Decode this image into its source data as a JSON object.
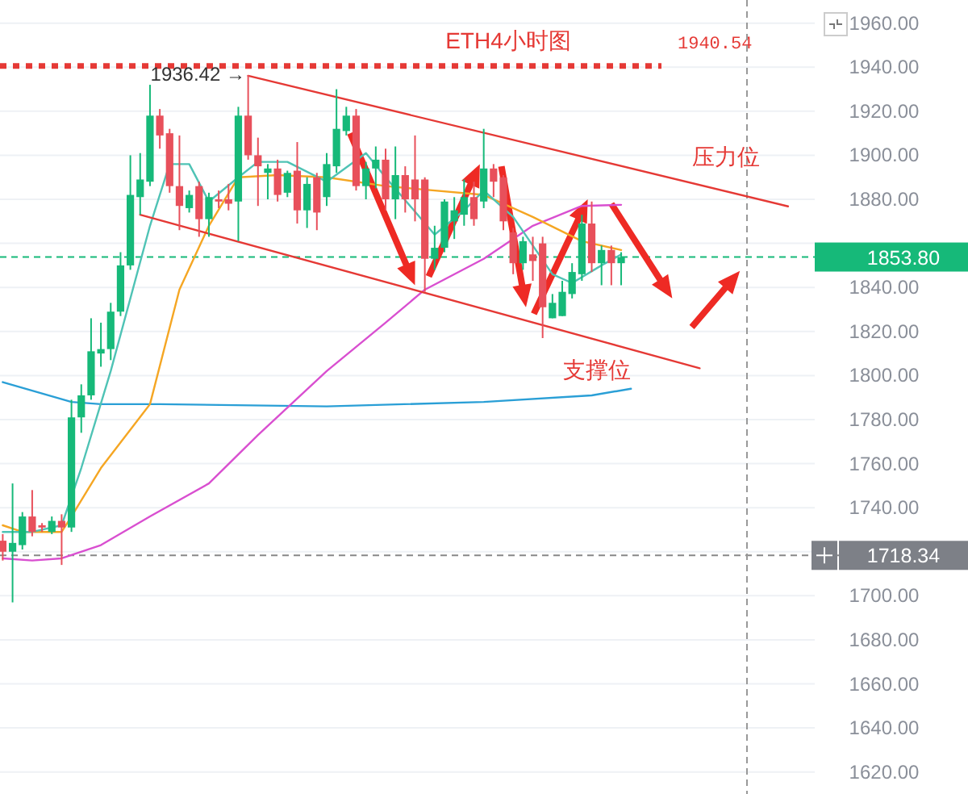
{
  "chart_data": {
    "type": "candlestick",
    "title": "ETH4小时图",
    "categories": [
      null,
      null,
      null,
      null,
      null,
      null,
      null,
      null,
      null,
      null,
      null,
      null,
      null,
      null,
      null,
      null,
      null,
      null,
      null,
      null,
      null,
      null,
      null,
      null,
      null,
      null,
      null,
      null,
      null,
      null,
      null,
      null,
      null,
      null,
      null,
      null,
      null,
      null,
      null,
      null,
      null,
      null,
      null,
      null,
      null,
      null,
      null,
      null,
      null,
      null,
      null,
      null,
      null,
      null,
      null,
      null,
      null,
      null,
      null,
      null,
      null,
      null,
      null,
      null,
      null,
      null,
      null,
      null,
      null,
      null,
      null,
      null,
      null,
      null,
      null,
      null,
      null,
      null,
      null,
      null,
      null,
      null,
      null
    ],
    "ohlc": [
      [
        1725,
        1728,
        1716,
        1720
      ],
      [
        1720,
        1751,
        1697,
        1724
      ],
      [
        1723,
        1738,
        1721,
        1736
      ],
      [
        1736,
        1748,
        1727,
        1729
      ],
      [
        1732,
        1733,
        1729,
        1731
      ],
      [
        1729,
        1736,
        1728,
        1734
      ],
      [
        1734,
        1737,
        1714,
        1731
      ],
      [
        1731,
        1789,
        1729,
        1781
      ],
      [
        1781,
        1796,
        1774,
        1791
      ],
      [
        1791,
        1826,
        1789,
        1811
      ],
      [
        1810,
        1824,
        1804,
        1812
      ],
      [
        1812,
        1833,
        1807,
        1829
      ],
      [
        1829,
        1856,
        1827,
        1850
      ],
      [
        1850,
        1900,
        1848,
        1882
      ],
      [
        1881,
        1901,
        1873,
        1889
      ],
      [
        1888,
        1932,
        1886,
        1918
      ],
      [
        1918,
        1921,
        1903,
        1909
      ],
      [
        1910,
        1912,
        1883,
        1886
      ],
      [
        1886,
        1909,
        1866,
        1877
      ],
      [
        1876,
        1884,
        1874,
        1882
      ],
      [
        1886,
        1888,
        1863,
        1871
      ],
      [
        1871,
        1883,
        1863,
        1881
      ],
      [
        1880,
        1884,
        1876,
        1879
      ],
      [
        1880,
        1887,
        1875,
        1878
      ],
      [
        1879,
        1922,
        1861,
        1918
      ],
      [
        1918,
        1936.42,
        1898,
        1900
      ],
      [
        1900,
        1908,
        1877,
        1895
      ],
      [
        1892,
        1896,
        1880,
        1894
      ],
      [
        1894,
        1898,
        1879,
        1882
      ],
      [
        1883,
        1893,
        1881,
        1892
      ],
      [
        1893,
        1906,
        1869,
        1875
      ],
      [
        1875,
        1890,
        1867,
        1887
      ],
      [
        1890,
        1892,
        1866,
        1874
      ],
      [
        1881,
        1901,
        1877,
        1896
      ],
      [
        1895,
        1930,
        1892,
        1912
      ],
      [
        1911,
        1922,
        1909,
        1918
      ],
      [
        1918,
        1921,
        1884,
        1886
      ],
      [
        1886,
        1897,
        1880,
        1894
      ],
      [
        1894,
        1904,
        1885,
        1898
      ],
      [
        1898,
        1903,
        1875,
        1880
      ],
      [
        1880,
        1904,
        1871,
        1891
      ],
      [
        1891,
        1895,
        1874,
        1880
      ],
      [
        1889,
        1909,
        1870,
        1880
      ],
      [
        1889,
        1890,
        1838,
        1853
      ],
      [
        1853,
        1868,
        1848,
        1858
      ],
      [
        1858,
        1880,
        1856,
        1879
      ],
      [
        1870,
        1881,
        1862,
        1875
      ],
      [
        1873,
        1889,
        1868,
        1881
      ],
      [
        1881,
        1888,
        1868,
        1871
      ],
      [
        1879,
        1912,
        1876,
        1894
      ],
      [
        1894,
        1896,
        1881,
        1888
      ],
      [
        1890,
        1891,
        1866,
        1870
      ],
      [
        1865,
        1867,
        1846,
        1851
      ],
      [
        1851,
        1863,
        1848,
        1861
      ],
      [
        1855,
        1863,
        1843,
        1852
      ],
      [
        1860,
        1863,
        1817,
        1831
      ],
      [
        1826,
        1837,
        1826,
        1833
      ],
      [
        1827,
        1843,
        1827,
        1838
      ],
      [
        1837,
        1851,
        1835,
        1847
      ],
      [
        1846,
        1873,
        1843,
        1869
      ],
      [
        1869,
        1879,
        1847,
        1851
      ],
      [
        1851,
        1859,
        1841,
        1857
      ],
      [
        1857,
        1859,
        1841,
        1851
      ],
      [
        1851,
        1856,
        1841,
        1853.8
      ],
      null,
      null,
      null,
      null,
      null,
      null,
      null,
      null,
      null,
      null,
      null,
      null,
      null,
      null,
      null,
      null,
      null,
      null,
      null
    ],
    "series": [
      {
        "type": "line",
        "color": "#2a9fd6",
        "values": [
          1797,
          null,
          null,
          null,
          null,
          null,
          null,
          1788,
          null,
          null,
          1787,
          null,
          null,
          null,
          null,
          null,
          1787,
          null,
          null,
          null,
          null,
          null,
          null,
          null,
          null,
          null,
          null,
          null,
          null,
          null,
          null,
          null,
          null,
          1786,
          null,
          null,
          null,
          null,
          null,
          null,
          null,
          null,
          null,
          null,
          null,
          null,
          null,
          null,
          null,
          1788,
          null,
          null,
          null,
          null,
          null,
          null,
          null,
          null,
          null,
          null,
          1791,
          null,
          null,
          null,
          1794,
          null,
          null,
          null,
          null,
          null,
          null,
          null,
          null,
          null,
          null,
          null,
          null,
          null,
          null,
          null,
          null,
          null,
          null
        ]
      },
      {
        "type": "line",
        "color": "#d94fd0",
        "values": [
          1717,
          null,
          null,
          1716,
          null,
          null,
          1717,
          null,
          null,
          null,
          1723,
          null,
          null,
          null,
          null,
          1736,
          null,
          null,
          null,
          null,
          null,
          1751,
          null,
          null,
          null,
          null,
          1773,
          null,
          null,
          null,
          null,
          null,
          null,
          1802,
          null,
          null,
          null,
          null,
          null,
          1824,
          null,
          null,
          null,
          1839,
          null,
          null,
          null,
          null,
          null,
          1853,
          null,
          null,
          null,
          null,
          1868,
          null,
          null,
          null,
          null,
          1877,
          null,
          null,
          null,
          1877.5,
          null,
          null,
          null,
          null,
          null,
          null,
          null,
          null,
          null,
          null,
          null,
          null,
          null,
          null,
          null,
          null,
          null,
          null,
          null
        ]
      },
      {
        "type": "line",
        "color": "#f5a623",
        "values": [
          1732,
          null,
          1729,
          null,
          null,
          null,
          1729,
          1736,
          null,
          null,
          1758,
          null,
          null,
          null,
          null,
          1787,
          null,
          null,
          1839,
          null,
          null,
          1868,
          null,
          null,
          1890,
          null,
          null,
          null,
          1891,
          null,
          null,
          null,
          null,
          1890,
          null,
          null,
          null,
          null,
          null,
          1886,
          null,
          null,
          null,
          null,
          null,
          null,
          null,
          null,
          null,
          1882,
          null,
          null,
          null,
          null,
          1872,
          null,
          null,
          null,
          null,
          1861,
          null,
          null,
          null,
          1857,
          null,
          null,
          null,
          null,
          null,
          null,
          null,
          null,
          null,
          null,
          null,
          null,
          null,
          null,
          null,
          null,
          null,
          null,
          null
        ]
      },
      {
        "type": "line",
        "color": "#4fc3b5",
        "values": [
          1729,
          null,
          null,
          1729,
          null,
          null,
          1732,
          null,
          1758,
          null,
          null,
          1802,
          null,
          null,
          null,
          1868,
          null,
          1896,
          null,
          1896,
          null,
          1879,
          null,
          null,
          1890,
          null,
          1897,
          null,
          null,
          1897,
          null,
          null,
          null,
          1888,
          null,
          null,
          null,
          1901,
          null,
          1890,
          null,
          null,
          null,
          null,
          1864,
          null,
          null,
          1875,
          null,
          1884,
          null,
          null,
          1872,
          null,
          null,
          null,
          1846,
          null,
          1842,
          null,
          null,
          1850,
          null,
          1855,
          null,
          null,
          null,
          null,
          null,
          null,
          null,
          null,
          null,
          null,
          null,
          null,
          null,
          null,
          null,
          null,
          null,
          null,
          null
        ]
      },
      {
        "type": "line",
        "color": "#e53935",
        "values": [
          null,
          null,
          null,
          null,
          null,
          null,
          null,
          null,
          null,
          null,
          null,
          null,
          null,
          null,
          null,
          null,
          null,
          null,
          null,
          null,
          null,
          null,
          null,
          null,
          null,
          1936.1,
          null,
          null,
          null,
          null,
          null,
          null,
          null,
          null,
          null,
          null,
          null,
          null,
          null,
          null,
          null,
          null,
          null,
          null,
          null,
          null,
          null,
          null,
          null,
          null,
          null,
          null,
          null,
          null,
          null,
          null,
          null,
          null,
          null,
          null,
          null,
          null,
          null,
          null,
          null,
          null,
          null,
          null,
          null,
          null,
          null,
          null,
          null,
          null,
          null,
          null,
          null,
          null,
          null,
          null,
          1876.8,
          null,
          null
        ]
      },
      {
        "type": "line",
        "color": "#e53935",
        "values": [
          null,
          null,
          null,
          null,
          null,
          null,
          null,
          null,
          null,
          null,
          null,
          null,
          null,
          null,
          1873,
          null,
          null,
          null,
          null,
          null,
          null,
          null,
          null,
          null,
          null,
          null,
          null,
          null,
          null,
          null,
          null,
          null,
          null,
          null,
          null,
          null,
          null,
          null,
          null,
          null,
          null,
          null,
          null,
          null,
          null,
          null,
          null,
          null,
          null,
          null,
          null,
          null,
          null,
          null,
          null,
          null,
          null,
          null,
          null,
          null,
          null,
          null,
          null,
          null,
          null,
          null,
          null,
          null,
          null,
          null,
          null,
          1803.3,
          null,
          null,
          null,
          null,
          null,
          null,
          null,
          null,
          null,
          null,
          null
        ]
      }
    ],
    "ylim": [
      1610,
      1970.5
    ],
    "yticks": [
      {
        "value": 1620,
        "label": "1620.00"
      },
      {
        "value": 1640,
        "label": "1640.00"
      },
      {
        "value": 1660,
        "label": "1660.00"
      },
      {
        "value": 1680,
        "label": "1680.00"
      },
      {
        "value": 1700,
        "label": "1700.00"
      },
      {
        "value": 1720,
        "label": null
      },
      {
        "value": 1740,
        "label": "1740.00"
      },
      {
        "value": 1760,
        "label": "1760.00"
      },
      {
        "value": 1780,
        "label": "1780.00"
      },
      {
        "value": 1800,
        "label": "1800.00"
      },
      {
        "value": 1820,
        "label": "1820.00"
      },
      {
        "value": 1840,
        "label": "1840.00"
      },
      {
        "value": 1860,
        "label": null
      },
      {
        "value": 1880,
        "label": "1880.00"
      },
      {
        "value": 1900,
        "label": "1900.00"
      },
      {
        "value": 1920,
        "label": "1920.00"
      },
      {
        "value": 1940,
        "label": "1940.00"
      },
      {
        "value": 1960,
        "label": "1960.00"
      }
    ],
    "ref_lines": [
      {
        "axis": "y",
        "value": 1940.54,
        "label": "1940.54",
        "color": "#e53935",
        "line_style": "dotted"
      },
      {
        "axis": "y",
        "value": 1853.8,
        "label": "1853.80",
        "color": "#16b979",
        "line_style": "dashed"
      },
      {
        "axis": "y",
        "value": 1718.34,
        "label": "1718.34",
        "color": "#888888",
        "line_style": "dashed"
      }
    ],
    "annotations": [
      "1936.42 →",
      "压力位",
      "支撑位"
    ],
    "grid": "y",
    "tick_labels": "y"
  }
}
